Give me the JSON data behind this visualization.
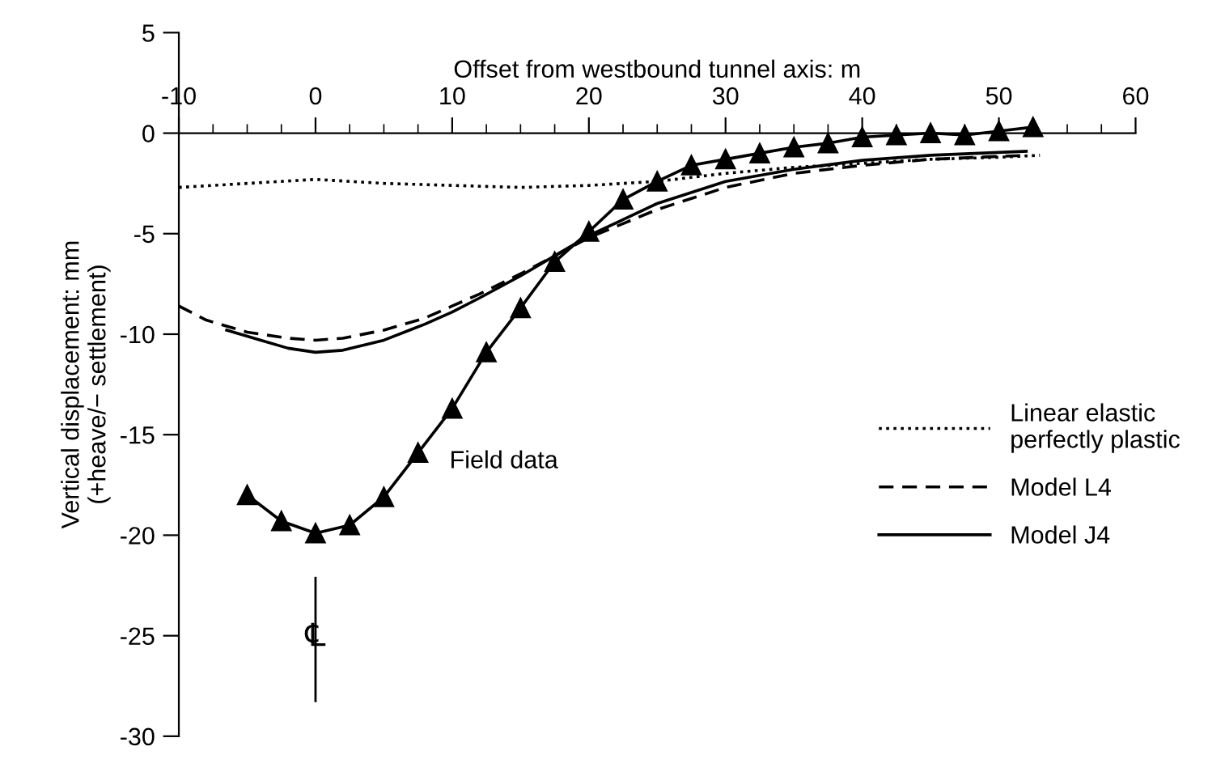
{
  "chart_data": {
    "type": "line",
    "xlabel": "Offset from westbound tunnel axis: m",
    "ylabel": "Vertical displacement: mm\n(+heave/− settlement)",
    "xlim": [
      -10,
      60
    ],
    "xticks": [
      -10,
      0,
      10,
      20,
      30,
      40,
      50,
      60
    ],
    "ylim": [
      -30,
      5
    ],
    "yticks": [
      5,
      0,
      -5,
      -10,
      -15,
      -20,
      -25,
      -30
    ],
    "grid": false,
    "legend": "right",
    "series": [
      {
        "name": "Linear elastic\nperfectly plastic",
        "color": "#000000",
        "line_style": "dotted",
        "marker": "none",
        "x": [
          -10,
          -5,
          0,
          5,
          10,
          15,
          20,
          25,
          30,
          35,
          40,
          45,
          50,
          53
        ],
        "values": [
          -2.7,
          -2.5,
          -2.3,
          -2.5,
          -2.6,
          -2.7,
          -2.6,
          -2.4,
          -2.0,
          -1.7,
          -1.5,
          -1.3,
          -1.2,
          -1.1
        ]
      },
      {
        "name": "Model L4",
        "color": "#000000",
        "line_style": "dashed",
        "marker": "none",
        "x": [
          -10,
          -8,
          -5,
          -2,
          0,
          2,
          5,
          8,
          10,
          12,
          15,
          17.5,
          20,
          22.5,
          25,
          30,
          35,
          40,
          45,
          52
        ],
        "values": [
          -8.6,
          -9.3,
          -9.9,
          -10.2,
          -10.3,
          -10.2,
          -9.8,
          -9.2,
          -8.6,
          -8.0,
          -7.0,
          -6.1,
          -5.2,
          -4.5,
          -3.8,
          -2.7,
          -2.0,
          -1.6,
          -1.3,
          -1.1
        ]
      },
      {
        "name": "Model J4",
        "color": "#000000",
        "line_style": "solid",
        "marker": "none",
        "x": [
          -6.5,
          -4,
          -2,
          0,
          2,
          5,
          8,
          10,
          12,
          15,
          17.5,
          20,
          22.5,
          25,
          30,
          35,
          40,
          45,
          52
        ],
        "values": [
          -9.8,
          -10.3,
          -10.7,
          -10.9,
          -10.8,
          -10.3,
          -9.5,
          -8.9,
          -8.2,
          -7.1,
          -6.1,
          -5.1,
          -4.3,
          -3.5,
          -2.4,
          -1.8,
          -1.35,
          -1.1,
          -0.9
        ]
      },
      {
        "name": "Field data",
        "color": "#000000",
        "line_style": "solid",
        "marker": "triangle",
        "x": [
          -5,
          -2.5,
          0,
          2.5,
          5,
          7.5,
          10,
          12.5,
          15,
          17.5,
          20,
          22.5,
          25,
          27.5,
          30,
          32.5,
          35,
          37.5,
          40,
          42.5,
          45,
          47.5,
          50,
          52.5
        ],
        "values": [
          -18,
          -19.3,
          -19.9,
          -19.5,
          -18.1,
          -15.9,
          -13.7,
          -10.9,
          -8.7,
          -6.4,
          -4.9,
          -3.3,
          -2.4,
          -1.6,
          -1.3,
          -1.0,
          -0.7,
          -0.5,
          -0.2,
          -0.1,
          0.0,
          -0.1,
          0.1,
          0.3
        ]
      }
    ],
    "ref_lines": [
      {
        "axis": "x",
        "value": 0,
        "label": "℄"
      }
    ]
  }
}
